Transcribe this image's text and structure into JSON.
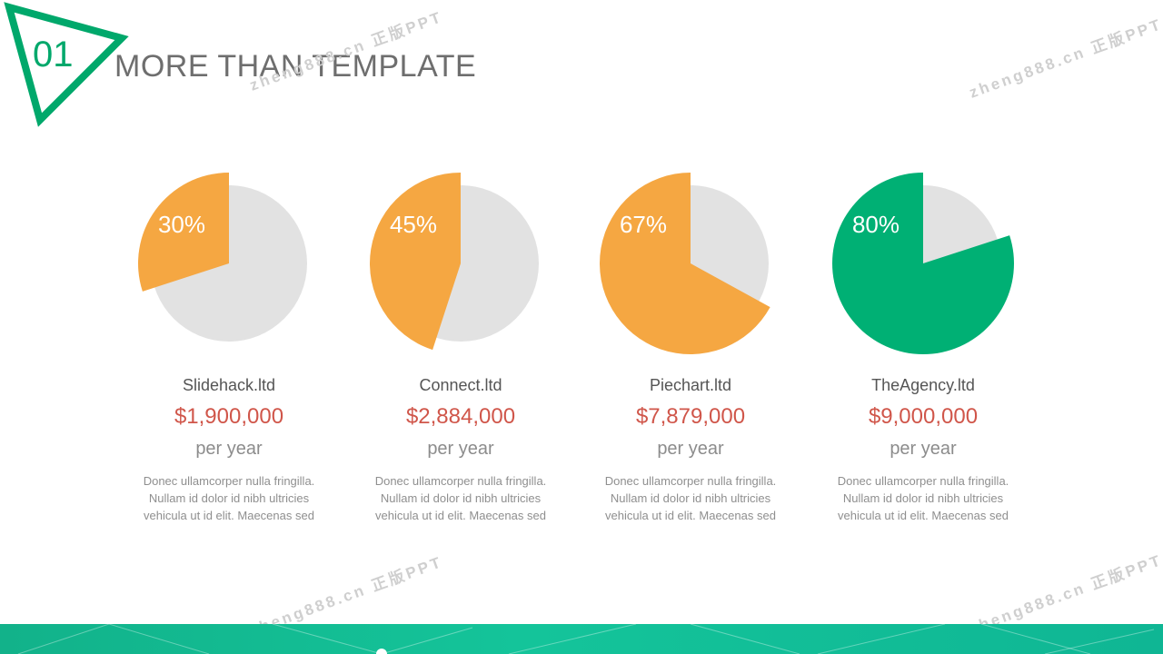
{
  "header": {
    "number": "01",
    "title": "MORE THAN TEMPLATE"
  },
  "watermark": "zheng888.cn 正版PPT",
  "colors": {
    "accent_green": "#00a86b",
    "pie_orange": "#f5a742",
    "pie_green": "#00b074",
    "pie_track": "#e2e2e2",
    "amount_red": "#d0564a",
    "band_teal": "#14c49a"
  },
  "chart_data": {
    "type": "pie",
    "categories": [
      "Slidehack.ltd",
      "Connect.ltd",
      "Piechart.ltd",
      "TheAgency.ltd"
    ],
    "values": [
      30,
      45,
      67,
      80
    ],
    "value_labels": [
      "30%",
      "45%",
      "67%",
      "80%"
    ],
    "colors": [
      "#f5a742",
      "#f5a742",
      "#f5a742",
      "#00b074"
    ]
  },
  "cards": [
    {
      "company": "Slidehack.ltd",
      "amount": "$1,900,000",
      "per": "per year",
      "desc": "Donec ullamcorper nulla fringilla. Nullam id dolor id nibh ultricies vehicula ut id elit. Maecenas sed"
    },
    {
      "company": "Connect.ltd",
      "amount": "$2,884,000",
      "per": "per year",
      "desc": "Donec ullamcorper nulla fringilla. Nullam id dolor id nibh ultricies vehicula ut id elit. Maecenas sed"
    },
    {
      "company": "Piechart.ltd",
      "amount": "$7,879,000",
      "per": "per year",
      "desc": "Donec ullamcorper nulla fringilla. Nullam id dolor id nibh ultricies vehicula ut id elit. Maecenas sed"
    },
    {
      "company": "TheAgency.ltd",
      "amount": "$9,000,000",
      "per": "per year",
      "desc": "Donec ullamcorper nulla fringilla. Nullam id dolor id nibh ultricies vehicula ut id elit. Maecenas sed"
    }
  ]
}
